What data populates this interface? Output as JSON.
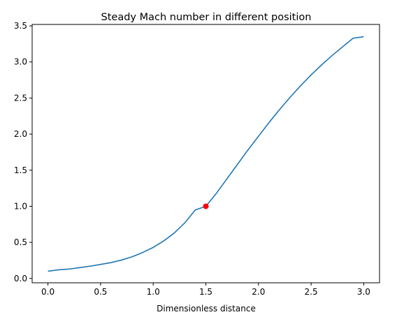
{
  "chart_data": {
    "type": "line",
    "title": "Steady Mach number in different position",
    "xlabel": "Dimensionless distance",
    "ylabel": "",
    "xlim": [
      -0.15,
      3.15
    ],
    "ylim": [
      -0.06,
      3.52
    ],
    "xticks": [
      0.0,
      0.5,
      1.0,
      1.5,
      2.0,
      2.5,
      3.0
    ],
    "xtick_labels": [
      "0.0",
      "0.5",
      "1.0",
      "1.5",
      "2.0",
      "2.5",
      "3.0"
    ],
    "yticks": [
      0.0,
      0.5,
      1.0,
      1.5,
      2.0,
      2.5,
      3.0,
      3.5
    ],
    "ytick_labels": [
      "0.0",
      "0.5",
      "1.0",
      "1.5",
      "2.0",
      "2.5",
      "3.0",
      "3.5"
    ],
    "grid": false,
    "series": [
      {
        "color": "#1f77b4",
        "x": [
          0.0,
          0.1,
          0.2,
          0.3,
          0.4,
          0.5,
          0.6,
          0.7,
          0.8,
          0.9,
          1.0,
          1.1,
          1.2,
          1.3,
          1.4,
          1.5,
          1.6,
          1.7,
          1.8,
          1.9,
          2.0,
          2.1,
          2.2,
          2.3,
          2.4,
          2.5,
          2.6,
          2.7,
          2.8,
          2.9,
          3.0
        ],
        "y": [
          0.1,
          0.12,
          0.13,
          0.15,
          0.17,
          0.195,
          0.22,
          0.255,
          0.3,
          0.36,
          0.43,
          0.52,
          0.63,
          0.77,
          0.95,
          1.0,
          1.18,
          1.38,
          1.58,
          1.78,
          1.97,
          2.16,
          2.34,
          2.51,
          2.67,
          2.82,
          2.96,
          3.09,
          3.21,
          3.33,
          3.35
        ]
      }
    ],
    "markers": [
      {
        "x": 1.5,
        "y": 1.0,
        "color": "#ff0000"
      }
    ]
  }
}
